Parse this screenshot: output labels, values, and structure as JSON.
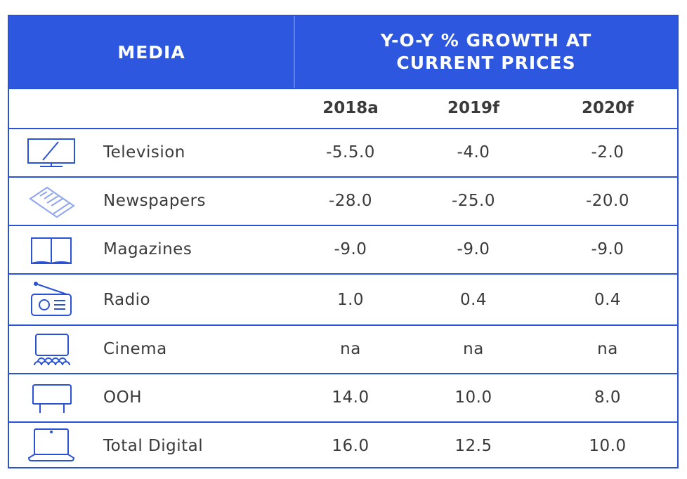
{
  "header": {
    "media": "MEDIA",
    "growth_line1": "Y-O-Y % GROWTH AT",
    "growth_line2": "CURRENT PRICES"
  },
  "chart_data": {
    "type": "table",
    "columns": [
      "2018a",
      "2019f",
      "2020f"
    ],
    "rows": [
      {
        "label": "Television",
        "icon": "television-icon",
        "values": [
          "-5.5.0",
          "-4.0",
          "-2.0"
        ]
      },
      {
        "label": "Newspapers",
        "icon": "newspaper-icon",
        "values": [
          "-28.0",
          "-25.0",
          "-20.0"
        ]
      },
      {
        "label": "Magazines",
        "icon": "magazine-icon",
        "values": [
          "-9.0",
          "-9.0",
          "-9.0"
        ]
      },
      {
        "label": "Radio",
        "icon": "radio-icon",
        "values": [
          "1.0",
          "0.4",
          "0.4"
        ]
      },
      {
        "label": "Cinema",
        "icon": "cinema-icon",
        "values": [
          "na",
          "na",
          "na"
        ]
      },
      {
        "label": "OOH",
        "icon": "billboard-icon",
        "values": [
          "14.0",
          "10.0",
          "8.0"
        ]
      },
      {
        "label": "Total Digital",
        "icon": "laptop-icon",
        "values": [
          "16.0",
          "12.5",
          "10.0"
        ]
      }
    ]
  },
  "colors": {
    "header_bg": "#2e57e0",
    "border": "#2a52d6",
    "icon_stroke": "#2a52d6",
    "text": "#3a3a3a"
  }
}
